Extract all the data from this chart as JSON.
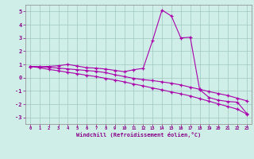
{
  "title": "",
  "xlabel": "Windchill (Refroidissement éolien,°C)",
  "bg_color": "#d0eee8",
  "grid_color": "#a0c8c0",
  "line_color": "#aa00aa",
  "spine_color": "#888888",
  "tick_color": "#880088",
  "xlim": [
    -0.5,
    23.5
  ],
  "ylim": [
    -3.5,
    5.5
  ],
  "xticks": [
    0,
    1,
    2,
    3,
    4,
    5,
    6,
    7,
    8,
    9,
    10,
    11,
    12,
    13,
    14,
    15,
    16,
    17,
    18,
    19,
    20,
    21,
    22,
    23
  ],
  "yticks": [
    -3,
    -2,
    -1,
    0,
    1,
    2,
    3,
    4,
    5
  ],
  "series1_x": [
    0,
    1,
    2,
    3,
    4,
    5,
    6,
    7,
    8,
    9,
    10,
    11,
    12,
    13,
    14,
    15,
    16,
    17,
    18,
    19,
    20,
    21,
    22,
    23
  ],
  "series1_y": [
    0.85,
    0.82,
    0.85,
    0.9,
    1.0,
    0.88,
    0.75,
    0.72,
    0.65,
    0.55,
    0.45,
    0.6,
    0.7,
    2.8,
    5.1,
    4.65,
    3.0,
    3.05,
    -0.9,
    -1.5,
    -1.7,
    -1.8,
    -1.85,
    -2.7
  ],
  "series2_x": [
    0,
    1,
    2,
    3,
    4,
    5,
    6,
    7,
    8,
    9,
    10,
    11,
    12,
    13,
    14,
    15,
    16,
    17,
    18,
    19,
    20,
    21,
    22,
    23
  ],
  "series2_y": [
    0.85,
    0.82,
    0.78,
    0.72,
    0.66,
    0.6,
    0.54,
    0.48,
    0.38,
    0.22,
    0.08,
    -0.05,
    -0.15,
    -0.22,
    -0.32,
    -0.42,
    -0.55,
    -0.72,
    -0.88,
    -1.05,
    -1.2,
    -1.35,
    -1.55,
    -1.75
  ],
  "series3_x": [
    0,
    1,
    2,
    3,
    4,
    5,
    6,
    7,
    8,
    9,
    10,
    11,
    12,
    13,
    14,
    15,
    16,
    17,
    18,
    19,
    20,
    21,
    22,
    23
  ],
  "series3_y": [
    0.85,
    0.75,
    0.62,
    0.52,
    0.4,
    0.3,
    0.18,
    0.08,
    -0.05,
    -0.18,
    -0.32,
    -0.48,
    -0.62,
    -0.78,
    -0.92,
    -1.08,
    -1.22,
    -1.38,
    -1.58,
    -1.78,
    -1.98,
    -2.18,
    -2.38,
    -2.75
  ]
}
